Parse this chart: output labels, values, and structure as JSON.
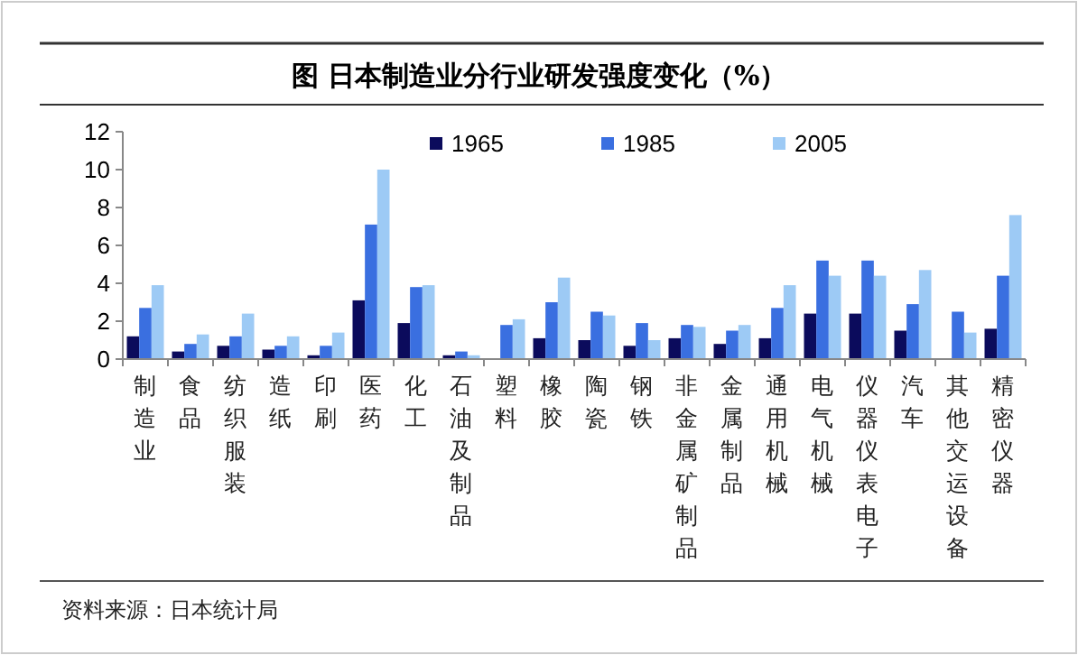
{
  "chart_data": {
    "type": "bar",
    "title": "图   日本制造业分行业研发强度变化（%）",
    "categories": [
      "制造业",
      "食品",
      "纺织服装",
      "造纸",
      "印刷",
      "医药",
      "化工",
      "石油及制品",
      "塑料",
      "橡胶",
      "陶瓷",
      "钢铁",
      "非金属矿制品",
      "金属制品",
      "通用机械",
      "电气机械",
      "仪器仪表电子",
      "汽车",
      "其他交运设备",
      "精密仪器"
    ],
    "series": [
      {
        "name": "1965",
        "color": "#0b0b5c",
        "values": [
          1.2,
          0.4,
          0.7,
          0.5,
          0.2,
          3.1,
          1.9,
          0.2,
          null,
          1.1,
          1.0,
          0.7,
          1.1,
          0.8,
          1.1,
          2.4,
          2.4,
          1.5,
          null,
          1.6
        ]
      },
      {
        "name": "1985",
        "color": "#3a6fe0",
        "values": [
          2.7,
          0.8,
          1.2,
          0.7,
          0.7,
          7.1,
          3.8,
          0.4,
          1.8,
          3.0,
          2.5,
          1.9,
          1.8,
          1.5,
          2.7,
          5.2,
          5.2,
          2.9,
          2.5,
          4.4
        ]
      },
      {
        "name": "2005",
        "color": "#9dcaf5",
        "values": [
          3.9,
          1.3,
          2.4,
          1.2,
          1.4,
          10.0,
          3.9,
          0.2,
          2.1,
          4.3,
          2.3,
          1.0,
          1.7,
          1.8,
          3.9,
          4.4,
          4.4,
          4.7,
          1.4,
          7.6
        ]
      }
    ],
    "ylim": [
      0,
      12
    ],
    "yticks": [
      0,
      2,
      4,
      6,
      8,
      10,
      12
    ],
    "legend": "top",
    "grid": false,
    "annotations": [
      "资料来源：日本统计局"
    ]
  }
}
